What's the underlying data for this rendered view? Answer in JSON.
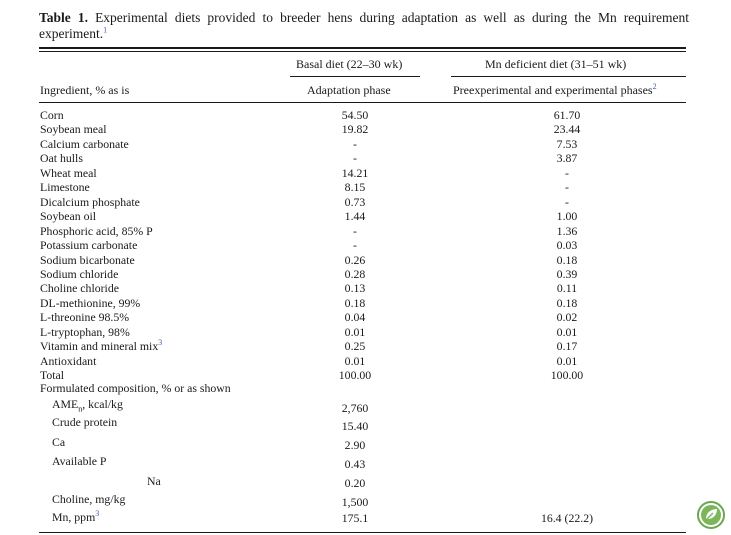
{
  "caption": {
    "label": "Table 1.",
    "text": "Experimental diets provided to breeder hens during adaptation as well as during the Mn requirement experiment.",
    "footnote": "1"
  },
  "headers": {
    "basal": "Basal diet (22–30 wk)",
    "basal_sub": "Adaptation phase",
    "mn_deficient": "Mn deficient diet (31–51 wk)",
    "mn_deficient_sub": "Preexperimental and experimental phases",
    "mn_deficient_sub_footnote": "2",
    "ingredient": "Ingredient, % as is"
  },
  "rows": [
    {
      "name": "Corn",
      "basal": "54.50",
      "mn": "61.70"
    },
    {
      "name": "Soybean meal",
      "basal": "19.82",
      "mn": "23.44"
    },
    {
      "name": "Calcium carbonate",
      "basal": "-",
      "mn": "7.53"
    },
    {
      "name": "Oat hulls",
      "basal": "-",
      "mn": "3.87"
    },
    {
      "name": "Wheat meal",
      "basal": "14.21",
      "mn": "-"
    },
    {
      "name": "Limestone",
      "basal": "8.15",
      "mn": "-"
    },
    {
      "name": "Dicalcium phosphate",
      "basal": "0.73",
      "mn": "-"
    },
    {
      "name": "Soybean oil",
      "basal": "1.44",
      "mn": "1.00"
    },
    {
      "name": "Phosphoric acid, 85% P",
      "basal": "-",
      "mn": "1.36"
    },
    {
      "name": "Potassium carbonate",
      "basal": "-",
      "mn": "0.03"
    },
    {
      "name": "Sodium bicarbonate",
      "basal": "0.26",
      "mn": "0.18"
    },
    {
      "name": "Sodium chloride",
      "basal": "0.28",
      "mn": "0.39"
    },
    {
      "name": "Choline chloride",
      "basal": "0.13",
      "mn": "0.11"
    },
    {
      "name": "DL-methionine, 99%",
      "basal": "0.18",
      "mn": "0.18"
    },
    {
      "name": "L-threonine 98.5%",
      "basal": "0.04",
      "mn": "0.02"
    },
    {
      "name": "L-tryptophan, 98%",
      "basal": "0.01",
      "mn": "0.01"
    },
    {
      "name": "Vitamin and mineral mix",
      "footnote": "3",
      "basal": "0.25",
      "mn": "0.17"
    },
    {
      "name": "Antioxidant",
      "basal": "0.01",
      "mn": "0.01"
    },
    {
      "name": "Total",
      "basal": "100.00",
      "mn": "100.00"
    }
  ],
  "composition": {
    "heading": "Formulated composition, % or as shown",
    "items": [
      {
        "name": "AME",
        "sub": "n",
        "suffix": ", kcal/kg",
        "basal": "2,760",
        "mn": ""
      },
      {
        "name": "Crude protein",
        "basal": "15.40",
        "mn": ""
      },
      {
        "name": "Ca",
        "basal": "2.90",
        "mn": ""
      },
      {
        "name": "Available P",
        "basal": "0.43",
        "mn": ""
      },
      {
        "name": "Na",
        "basal": "0.20",
        "mn": ""
      },
      {
        "name": "Choline, mg/kg",
        "basal": "1,500",
        "mn": ""
      },
      {
        "name": "Mn, ppm",
        "footnote": "3",
        "basal": "175.1",
        "mn": "16.4 (22.2)"
      }
    ]
  }
}
